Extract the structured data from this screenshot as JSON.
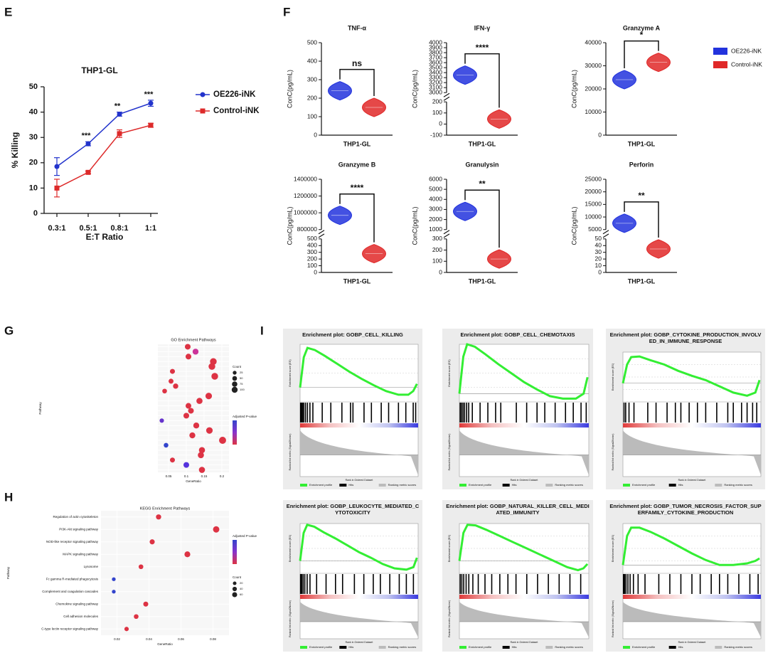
{
  "chart_data": [
    {
      "type": "line",
      "label": "E",
      "title": "THP1-GL",
      "xlabel": "E:T Ratio",
      "ylabel": "% Killing",
      "categories": [
        "0.3:1",
        "0.5:1",
        "0.8:1",
        "1:1"
      ],
      "ylim": [
        0,
        50
      ],
      "yticks": [
        0,
        10,
        20,
        30,
        40,
        50
      ],
      "series": [
        {
          "name": "OE226-iNK",
          "color": "#2233cc",
          "marker": "circle",
          "values": [
            18.5,
            27.5,
            39.2,
            43.5
          ],
          "errors": [
            3.5,
            0.8,
            0.8,
            1.2
          ]
        },
        {
          "name": "Control-iNK",
          "color": "#dd2a2a",
          "marker": "square",
          "values": [
            10,
            16.2,
            31.5,
            34.8
          ],
          "errors": [
            3.5,
            0.5,
            1.5,
            0.8
          ]
        }
      ],
      "significance": [
        null,
        "***",
        "**",
        "***"
      ]
    },
    {
      "type": "violin",
      "label": "F",
      "ylabel": "ConC(pg/mL)",
      "category": "THP1-GL",
      "series": [
        {
          "name": "OE226-iNK",
          "color": "#2233dd"
        },
        {
          "name": "Control-iNK",
          "color": "#e02828"
        }
      ],
      "plots": [
        {
          "title": "TNF-α",
          "axes": [
            {
              "ylim": [
                0,
                500
              ],
              "yticks": [
                0,
                100,
                200,
                300,
                400,
                500
              ]
            }
          ],
          "values": [
            240,
            150
          ],
          "significance": "ns"
        },
        {
          "title": "IFN-γ",
          "axes": [
            {
              "ylim": [
                -100,
                200
              ],
              "yticks": [
                -100,
                0,
                100,
                200
              ]
            },
            {
              "ylim": [
                3000,
                4000
              ],
              "yticks": [
                3000,
                3100,
                3200,
                3300,
                3400,
                3500,
                3600,
                3700,
                3800,
                3900,
                4000
              ]
            }
          ],
          "values": [
            3350,
            45
          ],
          "significance": "****"
        },
        {
          "title": "Granzyme A",
          "axes": [
            {
              "ylim": [
                0,
                40000
              ],
              "yticks": [
                0,
                10000,
                20000,
                30000,
                40000
              ]
            }
          ],
          "values": [
            24000,
            31500
          ],
          "significance": "*"
        },
        {
          "title": "Granzyme B",
          "axes": [
            {
              "ylim": [
                0,
                500
              ],
              "yticks": [
                0,
                100,
                200,
                300,
                400,
                500
              ]
            },
            {
              "ylim": [
                800000,
                1400000
              ],
              "yticks": [
                800000,
                1000000,
                1200000,
                1400000
              ]
            }
          ],
          "values": [
            970000,
            280
          ],
          "significance": "****"
        },
        {
          "title": "Granulysin",
          "axes": [
            {
              "ylim": [
                0,
                300
              ],
              "yticks": [
                0,
                100,
                200,
                300
              ]
            },
            {
              "ylim": [
                1000,
                6000
              ],
              "yticks": [
                1000,
                2000,
                3000,
                4000,
                5000,
                6000
              ]
            }
          ],
          "values": [
            2800,
            120
          ],
          "significance": "**"
        },
        {
          "title": "Perforin",
          "axes": [
            {
              "ylim": [
                0,
                50
              ],
              "yticks": [
                0,
                10,
                20,
                30,
                40,
                50
              ]
            },
            {
              "ylim": [
                5000,
                25000
              ],
              "yticks": [
                5000,
                10000,
                15000,
                20000,
                25000
              ]
            }
          ],
          "values": [
            7500,
            35
          ],
          "significance": "**"
        }
      ]
    },
    {
      "type": "dot",
      "label": "G",
      "title": "GO Enrichment Pathways",
      "xlabel": "GeneRatio",
      "ylabel": "Pathway",
      "size_title": "Count",
      "color_title": "Adjusted P-value",
      "categories": [
        null,
        null,
        null,
        null,
        null,
        null,
        null,
        null,
        null,
        null,
        null,
        null,
        null,
        null,
        null,
        null,
        null,
        null,
        null,
        null,
        null,
        null,
        null,
        null,
        null,
        null
      ],
      "values": [
        0.104,
        0.126,
        0.106,
        0.176,
        0.172,
        0.061,
        0.18,
        0.057,
        0.07,
        0.039,
        0.163,
        0.137,
        0.106,
        0.113,
        0.1,
        0.031,
        0.128,
        0.165,
        0.117,
        0.202,
        0.043,
        0.144,
        0.141,
        0.061,
        0.1,
        0.144
      ],
      "sizes": [
        45,
        50,
        45,
        70,
        70,
        30,
        70,
        30,
        35,
        25,
        65,
        55,
        45,
        45,
        45,
        20,
        50,
        65,
        50,
        80,
        25,
        55,
        55,
        30,
        45,
        55
      ],
      "colors": [
        "#dd3344",
        "#cc3399",
        "#dd3344",
        "#dd3344",
        "#dd3344",
        "#dd3344",
        "#dd3344",
        "#dd3344",
        "#dd3344",
        "#dd3344",
        "#dd3344",
        "#dd3344",
        "#dd3344",
        "#dd3344",
        "#dd3344",
        "#6633cc",
        "#dd3344",
        "#dd3344",
        "#dd3344",
        "#dd3344",
        "#3344cc",
        "#dd3344",
        "#dd3344",
        "#dd3344",
        "#5533dd",
        "#dd3344"
      ],
      "xlim": [
        0.02,
        0.22
      ],
      "xticks": [
        0.05,
        0.1,
        0.15,
        0.2
      ],
      "size_legend": [
        25,
        50,
        75,
        100
      ]
    },
    {
      "type": "dot",
      "label": "H",
      "title": "KEGG Enrichment Pathways",
      "xlabel": "GeneRatio",
      "ylabel": "Pathway",
      "size_title": "Count",
      "color_title": "Adjusted P-value",
      "categories": [
        "Regulation of actin cytoskeleton",
        "PI3K-Akt signaling pathway",
        "NOD-like receptor signaling pathway",
        "MAPK signaling pathway",
        "Lysosome",
        "Fc gamma R-mediated phagocytosis",
        "Complement and coagulation cascades",
        "Chemokine signaling pathway",
        "Cell adhesion molecules",
        "C-type lectin receptor signaling pathway"
      ],
      "values": [
        0.046,
        0.082,
        0.042,
        0.064,
        0.035,
        0.018,
        0.018,
        0.038,
        0.032,
        0.026
      ],
      "sizes": [
        35,
        60,
        32,
        48,
        25,
        12,
        12,
        30,
        25,
        20
      ],
      "colors": [
        "#dd3344",
        "#dd3344",
        "#dd3344",
        "#dd3344",
        "#dd3344",
        "#3344cc",
        "#3344cc",
        "#dd3344",
        "#dd3344",
        "#dd3344"
      ],
      "xlim": [
        0.01,
        0.09
      ],
      "xticks": [
        0.02,
        0.04,
        0.06,
        0.08
      ],
      "size_legend": [
        20,
        40,
        60
      ]
    },
    {
      "type": "gsea",
      "label": "I",
      "ylabel": "Enrichment score (ES)",
      "ylabel2": "Ranked list metric (Signal2Noise)",
      "xlabel": "Rank in Ordered Dataset",
      "legend": [
        "Enrichment profile",
        "Hits",
        "Ranking metric scores"
      ],
      "plots": [
        {
          "title": "Enrichment plot: GOBP_CELL_KILLING",
          "xlim": [
            0,
            48000
          ],
          "ylim": [
            -0.2,
            0.6
          ],
          "x": [
            0,
            1500,
            3000,
            6000,
            10000,
            15000,
            20000,
            25000,
            30000,
            35000,
            40000,
            44000,
            46000,
            47500
          ],
          "es": [
            0,
            0.42,
            0.55,
            0.52,
            0.44,
            0.33,
            0.22,
            0.12,
            0.03,
            -0.05,
            -0.1,
            -0.1,
            -0.05,
            0.05
          ],
          "hits": [
            200,
            600,
            1000,
            1500,
            2200,
            3000,
            4000,
            5200,
            9000,
            12500,
            17000,
            20500,
            21500,
            26000,
            29000,
            33000,
            36000,
            40000,
            43000,
            46000,
            47000
          ]
        },
        {
          "title": "Enrichment plot: GOBP_CELL_CHEMOTAXIS",
          "xlim": [
            0,
            50000
          ],
          "ylim": [
            -0.1,
            0.6
          ],
          "x": [
            0,
            1500,
            3000,
            6000,
            10000,
            15000,
            20000,
            25000,
            30000,
            35000,
            40000,
            45000,
            48000,
            49500
          ],
          "es": [
            0,
            0.45,
            0.6,
            0.57,
            0.48,
            0.36,
            0.25,
            0.14,
            0.05,
            -0.03,
            -0.06,
            -0.06,
            0,
            0.2
          ],
          "hits": [
            300,
            800,
            1400,
            2000,
            2800,
            3600,
            5000,
            8000,
            11000,
            14000,
            16000,
            22000,
            26000,
            30000,
            33000,
            37000,
            41000,
            44000,
            47000,
            49000
          ]
        },
        {
          "title": "Enrichment plot: GOBP_CYTOKINE_PRODUCTION_INVOLVED_IN_IMMUNE_RESPONSE",
          "xlim": [
            0,
            50000
          ],
          "ylim": [
            -0.3,
            0.5
          ],
          "x": [
            0,
            1500,
            3000,
            6000,
            10000,
            15000,
            20000,
            25000,
            30000,
            35000,
            40000,
            45000,
            48000,
            49500
          ],
          "es": [
            0,
            0.3,
            0.42,
            0.43,
            0.37,
            0.3,
            0.2,
            0.12,
            0.05,
            -0.05,
            -0.15,
            -0.2,
            -0.15,
            0.05
          ],
          "hits": [
            400,
            1000,
            2200,
            4000,
            9000,
            12000,
            16000,
            19000,
            21000,
            24000,
            27000,
            30000,
            34000,
            38000,
            40000,
            43000,
            45000,
            47000,
            48500
          ]
        },
        {
          "title": "Enrichment plot: GOBP_LEUKOCYTE_MEDIATED_CYTOTOXICITY",
          "xlim": [
            0,
            50000
          ],
          "ylim": [
            -0.2,
            0.6
          ],
          "x": [
            0,
            1500,
            3000,
            6000,
            10000,
            15000,
            20000,
            25000,
            30000,
            35000,
            40000,
            45000,
            48000,
            49500
          ],
          "es": [
            0,
            0.45,
            0.58,
            0.55,
            0.46,
            0.36,
            0.25,
            0.14,
            0.05,
            -0.05,
            -0.12,
            -0.14,
            -0.1,
            0.05
          ],
          "hits": [
            200,
            700,
            1300,
            2000,
            3000,
            4200,
            7000,
            11000,
            15000,
            18000,
            23000,
            27000,
            31000,
            34000,
            38000,
            42000,
            45000,
            48000
          ]
        },
        {
          "title": "Enrichment plot: GOBP_NATURAL_KILLER_CELL_MEDIATED_IMMUNITY",
          "xlim": [
            0,
            48000
          ],
          "ylim": [
            -0.2,
            0.6
          ],
          "x": [
            0,
            1500,
            3000,
            6000,
            10000,
            15000,
            20000,
            25000,
            30000,
            35000,
            40000,
            44000,
            46000,
            47500
          ],
          "es": [
            0,
            0.45,
            0.58,
            0.57,
            0.5,
            0.4,
            0.3,
            0.2,
            0.1,
            0,
            -0.1,
            -0.15,
            -0.12,
            -0.05
          ],
          "hits": [
            300,
            900,
            1600,
            2500,
            3500,
            5000,
            7000,
            9500,
            12000,
            15000,
            18000,
            21000,
            25000,
            29000,
            33000,
            37000,
            41000,
            45000
          ]
        },
        {
          "title": "Enrichment plot: GOBP_TUMOR_NECROSIS_FACTOR_SUPERFAMILY_CYTOKINE_PRODUCTION",
          "xlim": [
            0,
            50000
          ],
          "ylim": [
            -0.1,
            0.5
          ],
          "x": [
            0,
            1500,
            3000,
            6000,
            10000,
            15000,
            20000,
            25000,
            30000,
            35000,
            40000,
            45000,
            48000,
            49500
          ],
          "es": [
            0,
            0.35,
            0.45,
            0.45,
            0.4,
            0.32,
            0.23,
            0.14,
            0.06,
            0,
            0,
            0.02,
            0.05,
            0.08
          ],
          "hits": [
            200,
            600,
            1100,
            1800,
            2600,
            3800,
            5500,
            8000,
            13000,
            17000,
            21000,
            25000,
            28000,
            32000,
            35000,
            38000,
            42000,
            46000,
            49000
          ]
        }
      ]
    }
  ]
}
